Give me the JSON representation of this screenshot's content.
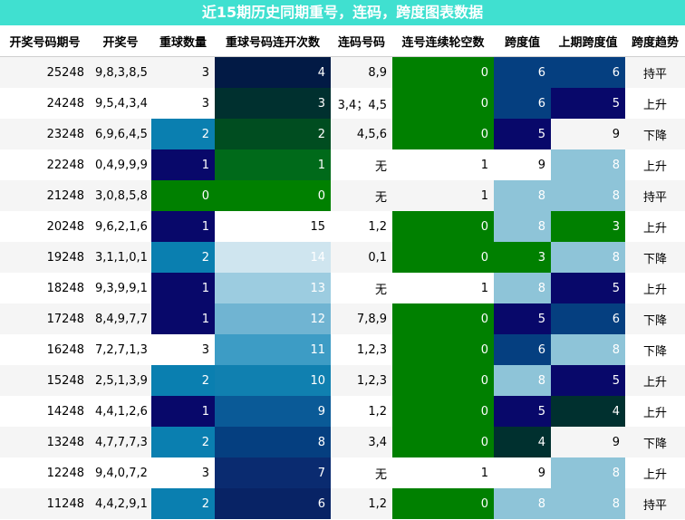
{
  "title": "近15期历史同期重号，连码，跨度图表数据",
  "headers": [
    "开奖号码期号",
    "开奖号",
    "重球数量",
    "重球号码连开次数",
    "连码号码",
    "连号连续轮空数",
    "跨度值",
    "上期跨度值",
    "跨度趋势"
  ],
  "rows": [
    {
      "period": "25248",
      "numbers": "9,8,3,8,5",
      "repeat": "3",
      "repeat_streak": "4",
      "consecutive": "8,9",
      "consec_gap": "0",
      "span": "6",
      "prev_span": "6",
      "trend": "持平"
    },
    {
      "period": "24248",
      "numbers": "9,5,4,3,4",
      "repeat": "3",
      "repeat_streak": "3",
      "consecutive": "3,4；4,5",
      "consec_gap": "0",
      "span": "6",
      "prev_span": "5",
      "trend": "上升"
    },
    {
      "period": "23248",
      "numbers": "6,9,6,4,5",
      "repeat": "2",
      "repeat_streak": "2",
      "consecutive": "4,5,6",
      "consec_gap": "0",
      "span": "5",
      "prev_span": "9",
      "trend": "下降"
    },
    {
      "period": "22248",
      "numbers": "0,4,9,9,9",
      "repeat": "1",
      "repeat_streak": "1",
      "consecutive": "无",
      "consec_gap": "1",
      "span": "9",
      "prev_span": "8",
      "trend": "上升"
    },
    {
      "period": "21248",
      "numbers": "3,0,8,5,8",
      "repeat": "0",
      "repeat_streak": "0",
      "consecutive": "无",
      "consec_gap": "1",
      "span": "8",
      "prev_span": "8",
      "trend": "持平"
    },
    {
      "period": "20248",
      "numbers": "9,6,2,1,6",
      "repeat": "1",
      "repeat_streak": "15",
      "consecutive": "1,2",
      "consec_gap": "0",
      "span": "8",
      "prev_span": "3",
      "trend": "上升"
    },
    {
      "period": "19248",
      "numbers": "3,1,1,0,1",
      "repeat": "2",
      "repeat_streak": "14",
      "consecutive": "0,1",
      "consec_gap": "0",
      "span": "3",
      "prev_span": "8",
      "trend": "下降"
    },
    {
      "period": "18248",
      "numbers": "9,3,9,9,1",
      "repeat": "1",
      "repeat_streak": "13",
      "consecutive": "无",
      "consec_gap": "1",
      "span": "8",
      "prev_span": "5",
      "trend": "上升"
    },
    {
      "period": "17248",
      "numbers": "8,4,9,7,7",
      "repeat": "1",
      "repeat_streak": "12",
      "consecutive": "7,8,9",
      "consec_gap": "0",
      "span": "5",
      "prev_span": "6",
      "trend": "下降"
    },
    {
      "period": "16248",
      "numbers": "7,2,7,1,3",
      "repeat": "3",
      "repeat_streak": "11",
      "consecutive": "1,2,3",
      "consec_gap": "0",
      "span": "6",
      "prev_span": "8",
      "trend": "下降"
    },
    {
      "period": "15248",
      "numbers": "2,5,1,3,9",
      "repeat": "2",
      "repeat_streak": "10",
      "consecutive": "1,2,3",
      "consec_gap": "0",
      "span": "8",
      "prev_span": "5",
      "trend": "上升"
    },
    {
      "period": "14248",
      "numbers": "4,4,1,2,6",
      "repeat": "1",
      "repeat_streak": "9",
      "consecutive": "1,2",
      "consec_gap": "0",
      "span": "5",
      "prev_span": "4",
      "trend": "上升"
    },
    {
      "period": "13248",
      "numbers": "4,7,7,7,3",
      "repeat": "2",
      "repeat_streak": "8",
      "consecutive": "3,4",
      "consec_gap": "0",
      "span": "4",
      "prev_span": "9",
      "trend": "下降"
    },
    {
      "period": "12248",
      "numbers": "9,4,0,7,2",
      "repeat": "3",
      "repeat_streak": "7",
      "consecutive": "无",
      "consec_gap": "1",
      "span": "9",
      "prev_span": "8",
      "trend": "上升"
    },
    {
      "period": "11248",
      "numbers": "4,4,2,9,1",
      "repeat": "2",
      "repeat_streak": "6",
      "consecutive": "1,2",
      "consec_gap": "0",
      "span": "8",
      "prev_span": "8",
      "trend": "持平"
    }
  ],
  "colors": {
    "title_bg": "#40e0d0",
    "repeat": {
      "0": "#008000",
      "1": "#08086a",
      "2": "#0a7fb0",
      "3": ""
    },
    "repeat_streak": {
      "0": "#008000",
      "1": "#006a1a",
      "2": "#004d20",
      "3": "#00302f",
      "4": "#021a45",
      "6": "#082365",
      "7": "#0a2b70",
      "8": "#053f80",
      "9": "#0a5a97",
      "10": "#1080b0",
      "11": "#3d9cc5",
      "12": "#70b4d2",
      "13": "#9ccce0",
      "14": "#cfe5ef",
      "15": ""
    },
    "consec_gap": {
      "0": "#008000",
      "1": ""
    },
    "span": {
      "3": "#008000",
      "4": "#00302f",
      "5": "#08086a",
      "6": "#053f80",
      "8": "#8ec4d8",
      "9": ""
    },
    "prev_span": {
      "3": "#008000",
      "4": "#00302f",
      "5": "#08086a",
      "6": "#053f80",
      "8": "#8ec4d8",
      "9": ""
    }
  }
}
